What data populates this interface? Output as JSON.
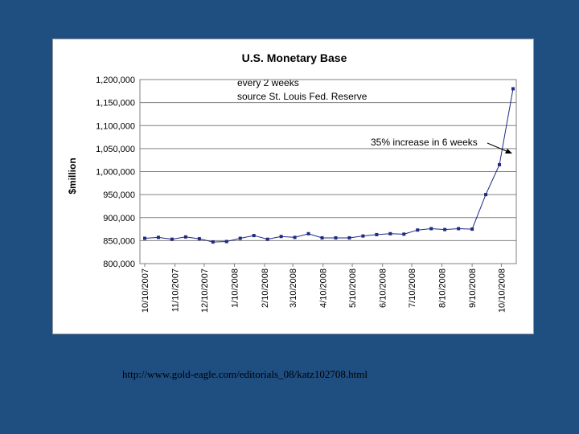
{
  "caption": "http://www.gold-eagle.com/editorials_08/katz102708.html",
  "colors": {
    "background": "#1f4e80",
    "series": "#1f2a80"
  },
  "chart_data": {
    "type": "line",
    "title": "U.S. Monetary Base",
    "xlabel": "",
    "ylabel": "$million",
    "ylim": [
      800000,
      1200000
    ],
    "yticks": [
      800000,
      850000,
      900000,
      950000,
      1000000,
      1050000,
      1100000,
      1150000,
      1200000
    ],
    "ytick_labels": [
      "800,000",
      "850,000",
      "900,000",
      "950,000",
      "1,000,000",
      "1,050,000",
      "1,100,000",
      "1,150,000",
      "1,200,000"
    ],
    "xtick_labels": [
      "10/10/2007",
      "11/10/2007",
      "12/10/2007",
      "1/10/2008",
      "2/10/2008",
      "3/10/2008",
      "4/10/2008",
      "5/10/2008",
      "6/10/2008",
      "7/10/2008",
      "8/10/2008",
      "9/10/2008",
      "10/10/2008"
    ],
    "grid": "horizontal",
    "legend": "none",
    "annotations": [
      "every 2 weeks",
      "source St. Louis Fed. Reserve",
      "35% increase in 6 weeks"
    ],
    "series": [
      {
        "x": [
          "10/10/2007",
          "10/24/2007",
          "11/7/2007",
          "11/21/2007",
          "12/5/2007",
          "12/19/2007",
          "1/2/2008",
          "1/16/2008",
          "1/30/2008",
          "2/13/2008",
          "2/27/2008",
          "3/12/2008",
          "3/26/2008",
          "4/9/2008",
          "4/23/2008",
          "5/7/2008",
          "5/21/2008",
          "6/4/2008",
          "6/18/2008",
          "7/2/2008",
          "7/16/2008",
          "7/30/2008",
          "8/13/2008",
          "8/27/2008",
          "9/10/2008",
          "9/24/2008",
          "10/8/2008",
          "10/22/2008"
        ],
        "values": [
          855000,
          857000,
          853000,
          858000,
          854000,
          847000,
          848000,
          855000,
          861000,
          853000,
          859000,
          857000,
          865000,
          856000,
          856000,
          856000,
          860000,
          863000,
          865000,
          864000,
          873000,
          876000,
          874000,
          876000,
          875000,
          950000,
          1015000,
          1180000
        ]
      }
    ]
  }
}
